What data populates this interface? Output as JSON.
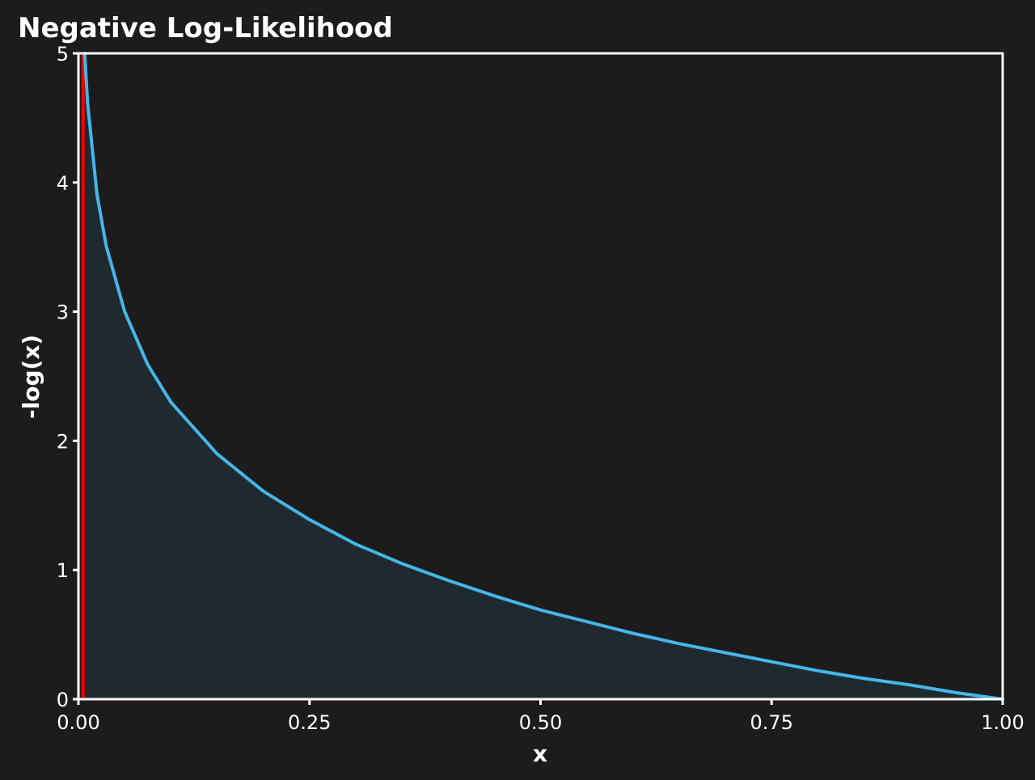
{
  "chart_data": {
    "type": "area",
    "title": "Negative Log-Likelihood",
    "xlabel": "x",
    "ylabel": "-log(x)",
    "function": "-log(x)",
    "xlim": [
      0,
      1
    ],
    "ylim": [
      0,
      5
    ],
    "x_ticks": [
      {
        "value": 0,
        "label": "0.00"
      },
      {
        "value": 0.25,
        "label": "0.25"
      },
      {
        "value": 0.5,
        "label": "0.50"
      },
      {
        "value": 0.75,
        "label": "0.75"
      },
      {
        "value": 1,
        "label": "1.00"
      }
    ],
    "y_ticks": [
      {
        "value": 0,
        "label": "0"
      },
      {
        "value": 1,
        "label": "1"
      },
      {
        "value": 2,
        "label": "2"
      },
      {
        "value": 3,
        "label": "3"
      },
      {
        "value": 4,
        "label": "4"
      },
      {
        "value": 5,
        "label": "5"
      }
    ],
    "series": [
      {
        "x": [
          0.0067,
          0.01,
          0.02,
          0.03,
          0.05,
          0.075,
          0.1,
          0.15,
          0.2,
          0.25,
          0.3,
          0.35,
          0.4,
          0.45,
          0.5,
          0.55,
          0.6,
          0.65,
          0.7,
          0.75,
          0.8,
          0.85,
          0.9,
          0.95,
          1.0
        ],
        "values": [
          5.0,
          4.61,
          3.91,
          3.51,
          3.0,
          2.59,
          2.3,
          1.9,
          1.61,
          1.39,
          1.2,
          1.05,
          0.92,
          0.8,
          0.69,
          0.6,
          0.51,
          0.43,
          0.36,
          0.29,
          0.22,
          0.16,
          0.11,
          0.05,
          0.0
        ]
      }
    ],
    "reference_line": {
      "x": 0.005
    },
    "grid": false,
    "colors": {
      "background": "#1c1c1c",
      "curve": "#45b6e8",
      "fill": "#1f2a30",
      "reference_line": "#ff0000",
      "axes": "#ffffff",
      "text": "#ffffff"
    }
  }
}
